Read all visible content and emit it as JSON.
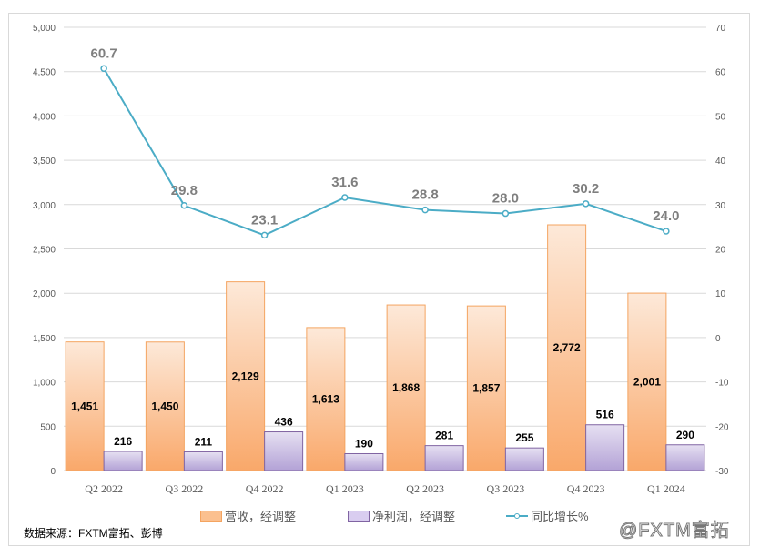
{
  "chart_data": {
    "type": "bar+line",
    "categories": [
      "Q2 2022",
      "Q3 2022",
      "Q4 2022",
      "Q1 2023",
      "Q2 2023",
      "Q3 2023",
      "Q4 2023",
      "Q1 2024"
    ],
    "series": [
      {
        "name": "营收，经调整",
        "type": "bar",
        "axis": "left",
        "color": "#fbc08f",
        "values": [
          1451,
          1450,
          2129,
          1613,
          1868,
          1857,
          2772,
          2001
        ],
        "labels": [
          "1,451",
          "1,450",
          "2,129",
          "1,613",
          "1,868",
          "1,857",
          "2,772",
          "2,001"
        ]
      },
      {
        "name": "净利润，经调整",
        "type": "bar",
        "axis": "left",
        "color": "#c9b7e8",
        "values": [
          216,
          211,
          436,
          190,
          281,
          255,
          516,
          290
        ],
        "labels": [
          "216",
          "211",
          "436",
          "190",
          "281",
          "255",
          "516",
          "290"
        ]
      },
      {
        "name": "同比增长%",
        "type": "line",
        "axis": "right",
        "color": "#4bacc6",
        "values": [
          60.7,
          29.8,
          23.1,
          31.6,
          28.8,
          28.0,
          30.2,
          24.0
        ],
        "labels": [
          "60.7",
          "29.8",
          "23.1",
          "31.6",
          "28.8",
          "28.0",
          "30.2",
          "24.0"
        ]
      }
    ],
    "left_axis": {
      "range": [
        0,
        5000
      ],
      "ticks": [
        "0",
        "500",
        "1,000",
        "1,500",
        "2,000",
        "2,500",
        "3,000",
        "3,500",
        "4,000",
        "4,500",
        "5,000"
      ]
    },
    "right_axis": {
      "range": [
        -30,
        70
      ],
      "ticks": [
        "-30",
        "-20",
        "-10",
        "0",
        "10",
        "20",
        "30",
        "40",
        "50",
        "60",
        "70"
      ]
    },
    "grid": true,
    "legend_position": "bottom"
  },
  "source": "数据来源：FXTM富拓、彭博",
  "watermark": "@FXTM富拓"
}
